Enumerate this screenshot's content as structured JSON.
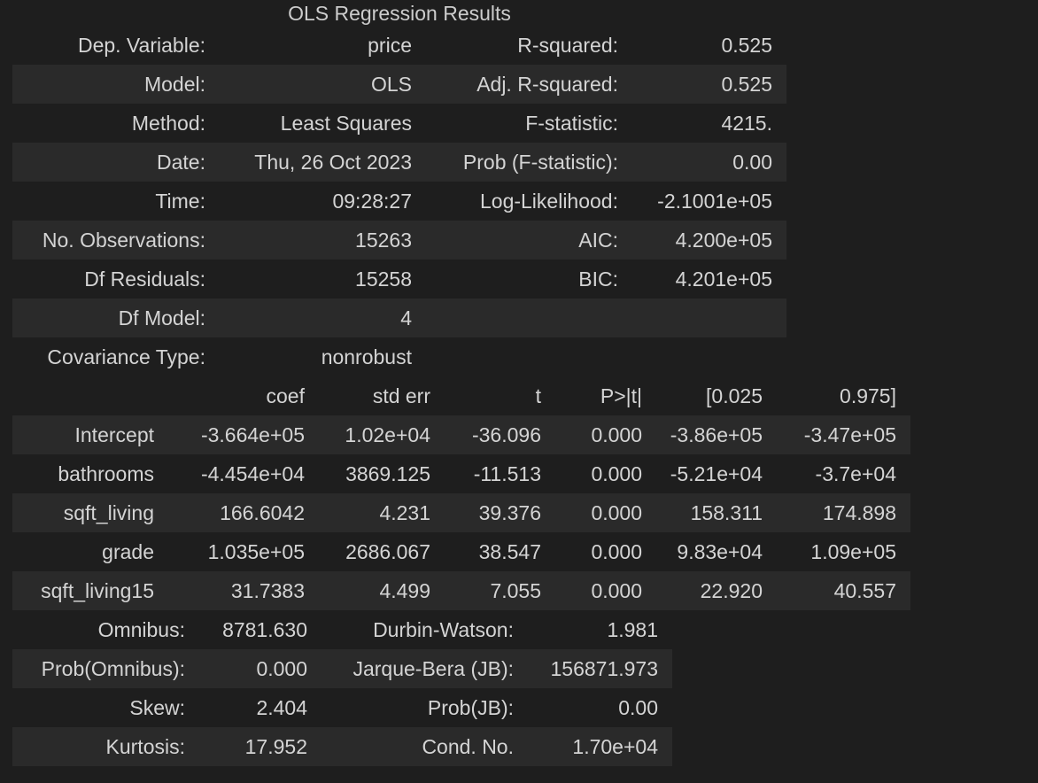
{
  "title": "OLS Regression Results",
  "summary_rows": [
    {
      "l1": "Dep. Variable:",
      "v1": "price",
      "l2": "R-squared:",
      "v2": "0.525"
    },
    {
      "l1": "Model:",
      "v1": "OLS",
      "l2": "Adj. R-squared:",
      "v2": "0.525"
    },
    {
      "l1": "Method:",
      "v1": "Least Squares",
      "l2": "F-statistic:",
      "v2": "4215."
    },
    {
      "l1": "Date:",
      "v1": "Thu, 26 Oct 2023",
      "l2": "Prob (F-statistic):",
      "v2": "0.00"
    },
    {
      "l1": "Time:",
      "v1": "09:28:27",
      "l2": "Log-Likelihood:",
      "v2": "-2.1001e+05"
    },
    {
      "l1": "No. Observations:",
      "v1": "15263",
      "l2": "AIC:",
      "v2": "4.200e+05"
    },
    {
      "l1": "Df Residuals:",
      "v1": "15258",
      "l2": "BIC:",
      "v2": "4.201e+05"
    },
    {
      "l1": "Df Model:",
      "v1": "4",
      "l2": "",
      "v2": ""
    },
    {
      "l1": "Covariance Type:",
      "v1": "nonrobust",
      "l2": "",
      "v2": ""
    }
  ],
  "coef_headers": [
    "",
    "coef",
    "std err",
    "t",
    "P>|t|",
    "[0.025",
    "0.975]"
  ],
  "coef_rows": [
    [
      "Intercept",
      "-3.664e+05",
      "1.02e+04",
      "-36.096",
      "0.000",
      "-3.86e+05",
      "-3.47e+05"
    ],
    [
      "bathrooms",
      "-4.454e+04",
      "3869.125",
      "-11.513",
      "0.000",
      "-5.21e+04",
      "-3.7e+04"
    ],
    [
      "sqft_living",
      "166.6042",
      "4.231",
      "39.376",
      "0.000",
      "158.311",
      "174.898"
    ],
    [
      "grade",
      "1.035e+05",
      "2686.067",
      "38.547",
      "0.000",
      "9.83e+04",
      "1.09e+05"
    ],
    [
      "sqft_living15",
      "31.7383",
      "4.499",
      "7.055",
      "0.000",
      "22.920",
      "40.557"
    ]
  ],
  "diag_rows": [
    {
      "l1": "Omnibus:",
      "v1": "8781.630",
      "l2": "Durbin-Watson:",
      "v2": "1.981"
    },
    {
      "l1": "Prob(Omnibus):",
      "v1": "0.000",
      "l2": "Jarque-Bera (JB):",
      "v2": "156871.973"
    },
    {
      "l1": "Skew:",
      "v1": "2.404",
      "l2": "Prob(JB):",
      "v2": "0.00"
    },
    {
      "l1": "Kurtosis:",
      "v1": "17.952",
      "l2": "Cond. No.",
      "v2": "1.70e+04"
    }
  ],
  "colors": {
    "background": "#1e1e1e",
    "stripe": "#2a2a2a",
    "text": "#d4d4d4"
  }
}
